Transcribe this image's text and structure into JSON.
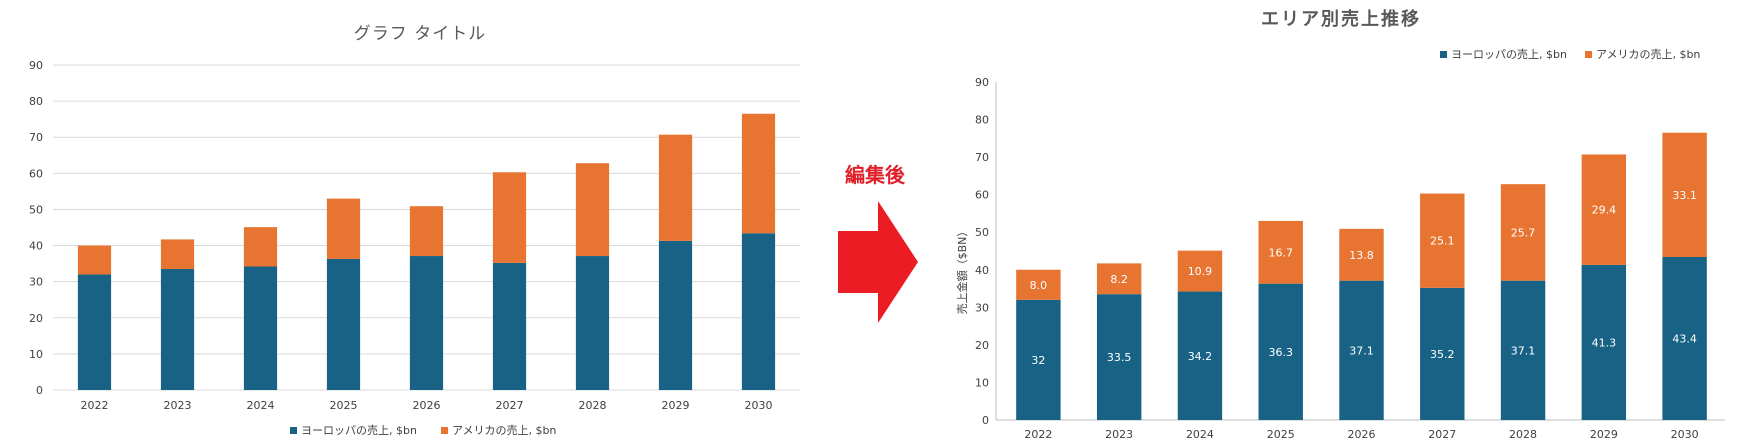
{
  "caption": "編集後",
  "colors": {
    "europe": "#186285",
    "america": "#e77431",
    "arrow": "#ec1c24",
    "caption": "#e0202a"
  },
  "chart_data": [
    {
      "type": "bar",
      "stacked": true,
      "title": "グラフ タイトル",
      "categories": [
        "2022",
        "2023",
        "2024",
        "2025",
        "2026",
        "2027",
        "2028",
        "2029",
        "2030"
      ],
      "series": [
        {
          "name": "ヨーロッパの売上, $bn",
          "values": [
            32,
            33.5,
            34.2,
            36.3,
            37.1,
            35.2,
            37.1,
            41.3,
            43.4
          ]
        },
        {
          "name": "アメリカの売上, $bn",
          "values": [
            8.0,
            8.2,
            10.9,
            16.7,
            13.8,
            25.1,
            25.7,
            29.4,
            33.1
          ]
        }
      ],
      "ylim": [
        0,
        90
      ],
      "yticks": [
        0,
        10,
        20,
        30,
        40,
        50,
        60,
        70,
        80,
        90
      ],
      "grid": true,
      "legend": "bottom",
      "data_labels": false
    },
    {
      "type": "bar",
      "stacked": true,
      "title": "エリア別売上推移",
      "ylabel": "売上金額（$BN）",
      "categories": [
        "2022",
        "2023",
        "2024",
        "2025",
        "2026",
        "2027",
        "2028",
        "2029",
        "2030"
      ],
      "series": [
        {
          "name": "ヨーロッパの売上, $bn",
          "values": [
            32,
            33.5,
            34.2,
            36.3,
            37.1,
            35.2,
            37.1,
            41.3,
            43.4
          ],
          "labels": [
            "32",
            "33.5",
            "34.2",
            "36.3",
            "37.1",
            "35.2",
            "37.1",
            "41.3",
            "43.4"
          ]
        },
        {
          "name": "アメリカの売上, $bn",
          "values": [
            8.0,
            8.2,
            10.9,
            16.7,
            13.8,
            25.1,
            25.7,
            29.4,
            33.1
          ],
          "labels": [
            "8.0",
            "8.2",
            "10.9",
            "16.7",
            "13.8",
            "25.1",
            "25.7",
            "29.4",
            "33.1"
          ]
        }
      ],
      "ylim": [
        0,
        90
      ],
      "yticks": [
        0,
        10,
        20,
        30,
        40,
        50,
        60,
        70,
        80,
        90
      ],
      "grid": false,
      "legend": "top-right",
      "data_labels": true
    }
  ]
}
